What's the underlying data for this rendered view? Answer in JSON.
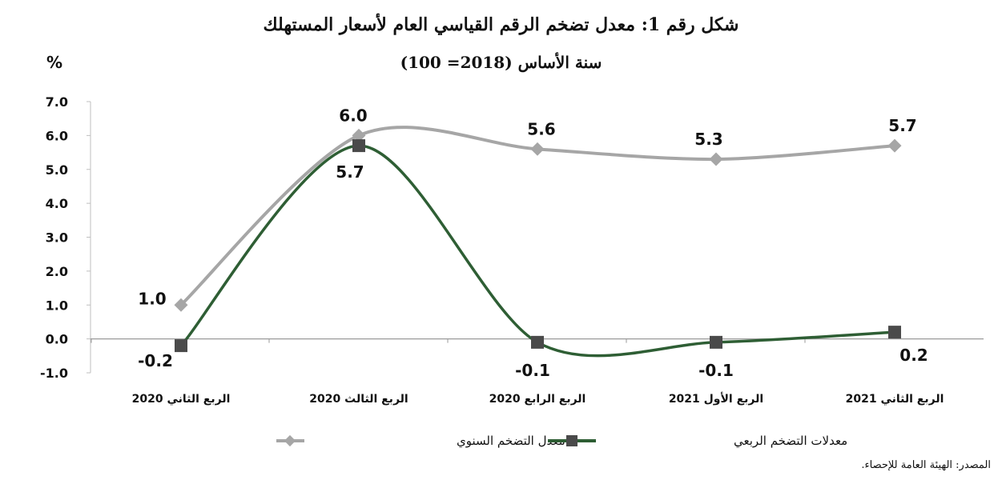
{
  "chart_data": {
    "type": "line",
    "title": "شكل رقم 1: معدل تضخم الرقم القياسي العام لأسعار المستهلك",
    "subtitle": "سنة الأساس (2018= 100)",
    "ylabel": "%",
    "categories": [
      "الربع الثاني 2020",
      "الربع الثالث 2020",
      "الربع الرابع 2020",
      "الربع الأول 2021",
      "الربع الثاني 2021"
    ],
    "ylim": [
      -1.0,
      7.0
    ],
    "yticks": [
      "7.0",
      "6.0",
      "5.0",
      "4.0",
      "3.0",
      "2.0",
      "1.0",
      "0.0",
      "-1.0"
    ],
    "ytick_values": [
      7,
      6,
      5,
      4,
      3,
      2,
      1,
      0,
      -1
    ],
    "grid": false,
    "legend_position": "bottom",
    "series": [
      {
        "name": "معدل التضخم السنوي",
        "values": [
          1.0,
          6.0,
          5.6,
          5.3,
          5.7
        ],
        "labels": [
          "1.0",
          "6.0",
          "5.6",
          "5.3",
          "5.7"
        ],
        "color": "#a6a6a6",
        "marker": "diamond"
      },
      {
        "name": "معدلات التضخم الربعي",
        "values": [
          -0.2,
          5.7,
          -0.1,
          -0.1,
          0.2
        ],
        "labels": [
          "-0.2",
          "5.7",
          "-0.1",
          "-0.1",
          "0.2"
        ],
        "color": "#2e5e34",
        "marker": "square"
      }
    ]
  },
  "source": "المصدر: الهيئة العامة للإحصاء."
}
